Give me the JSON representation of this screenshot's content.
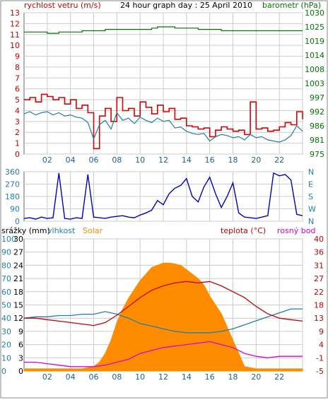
{
  "header": {
    "wind_label": "rychlost vetru (m/s)",
    "title": "24 hour graph day : 25 April 2010",
    "baro_label": "barometr (hPa)"
  },
  "legend2": {
    "precip": "srážky (mm)",
    "humidity": "vlhkost",
    "solar": "Solar",
    "temperature": "teplota (°C)",
    "dewpoint": "rosný bod"
  },
  "colors": {
    "wind_gust": "#dd0000",
    "wind_avg": "#1f7fa0",
    "baro": "#007700",
    "direction": "#0000cc",
    "solar": "#ff8c00",
    "temperature": "#cc0000",
    "humidity": "#1f7fb0",
    "dewpoint": "#dd00dd",
    "grid": "#cccccc",
    "axis_left_bottom": "#1f7fb0",
    "axis_right_red": "#cc0000"
  },
  "chart_data": [
    {
      "type": "line",
      "title": "24 hour graph day : 25 April 2010",
      "x_ticks": [
        "02",
        "04",
        "06",
        "08",
        "10",
        "12",
        "14",
        "16",
        "18",
        "20",
        "22",
        "24"
      ],
      "xlim": [
        0,
        24
      ],
      "ylabel": "rychlost vetru (m/s)",
      "y_ticks": [
        0,
        1,
        2,
        3,
        4,
        5,
        6,
        7,
        8,
        9,
        10,
        11,
        12,
        13
      ],
      "ylim": [
        0,
        13
      ],
      "y2label": "barometr (hPa)",
      "y2_ticks": [
        975,
        981,
        986,
        992,
        997,
        1003,
        1008,
        1014,
        1019,
        1025,
        1030
      ],
      "series": [
        {
          "name": "wind_gust",
          "x": [
            0,
            0.5,
            1,
            1.5,
            2,
            2.5,
            3,
            3.5,
            4,
            4.5,
            5,
            5.5,
            6,
            6.5,
            7,
            7.5,
            8,
            8.5,
            9,
            9.5,
            10,
            10.5,
            11,
            11.5,
            12,
            12.5,
            13,
            13.5,
            14,
            14.5,
            15,
            15.5,
            16,
            16.5,
            17,
            17.5,
            18,
            18.5,
            19,
            19.5,
            20,
            20.5,
            21,
            21.5,
            22,
            22.5,
            23,
            23.5,
            24
          ],
          "values": [
            5,
            5.2,
            4.8,
            5.5,
            5.3,
            5,
            5.2,
            4.6,
            5,
            4.2,
            4.5,
            3.8,
            0.5,
            3.5,
            4.2,
            3,
            5.2,
            4,
            4.2,
            3.5,
            4.8,
            4.3,
            3.7,
            4.5,
            3.9,
            4.2,
            3.2,
            3.3,
            2.6,
            2.5,
            2.3,
            2.4,
            1.6,
            2.2,
            2.5,
            2.3,
            2.1,
            2.2,
            1.8,
            4.8,
            2.3,
            2.4,
            2.1,
            2.2,
            2.5,
            2.9,
            2.7,
            3.9,
            3.2
          ]
        },
        {
          "name": "wind_avg",
          "x": [
            0,
            0.5,
            1,
            1.5,
            2,
            2.5,
            3,
            3.5,
            4,
            4.5,
            5,
            5.5,
            6,
            6.5,
            7,
            7.5,
            8,
            8.5,
            9,
            9.5,
            10,
            10.5,
            11,
            11.5,
            12,
            12.5,
            13,
            13.5,
            14,
            14.5,
            15,
            15.5,
            16,
            16.5,
            17,
            17.5,
            18,
            18.5,
            19,
            19.5,
            20,
            20.5,
            21,
            21.5,
            22,
            22.5,
            23,
            23.5,
            24
          ],
          "values": [
            3.7,
            3.9,
            3.6,
            3.8,
            3.9,
            3.6,
            3.8,
            3.5,
            3.6,
            3.4,
            3.3,
            2.9,
            1.4,
            2.7,
            3.1,
            2.3,
            3.8,
            3.1,
            3.3,
            2.8,
            3.4,
            3.1,
            2.9,
            3.3,
            3,
            3.1,
            2.4,
            2.5,
            2.1,
            1.9,
            1.8,
            1.9,
            1.2,
            1.6,
            1.8,
            1.7,
            1.5,
            1.6,
            1.3,
            1.8,
            1.5,
            1.6,
            1.3,
            1.2,
            1.1,
            1.3,
            1.7,
            2.6,
            2.1
          ]
        },
        {
          "name": "barometr",
          "axis": "right",
          "x": [
            0,
            1,
            2,
            3,
            4,
            5,
            6,
            7,
            8,
            9,
            10,
            11,
            11.5,
            12,
            13,
            14,
            15,
            16,
            17,
            18,
            19,
            20,
            21,
            22,
            23,
            24
          ],
          "values": [
            1022.5,
            1022.5,
            1022,
            1022.5,
            1022.5,
            1023,
            1023,
            1023.5,
            1023.5,
            1023.5,
            1023.5,
            1024,
            1024.5,
            1024.5,
            1024,
            1024,
            1023.5,
            1023.5,
            1023,
            1023,
            1023,
            1023,
            1023,
            1023,
            1023,
            1023
          ]
        }
      ]
    },
    {
      "type": "line",
      "x_ticks": [],
      "xlim": [
        0,
        24
      ],
      "y_ticks": [
        0,
        90,
        180,
        270,
        360
      ],
      "ylim": [
        0,
        360
      ],
      "y2_ticks": [
        "N",
        "W",
        "S",
        "E",
        "N"
      ],
      "series": [
        {
          "name": "direction",
          "x": [
            0,
            0.5,
            1,
            1.5,
            2,
            2.5,
            3,
            3.5,
            4,
            4.5,
            5,
            5.5,
            6,
            6.5,
            7,
            7.5,
            8,
            8.5,
            9,
            9.5,
            10,
            10.5,
            11,
            11.5,
            12,
            12.5,
            13,
            13.5,
            14,
            14.5,
            15,
            15.5,
            16,
            16.5,
            17,
            17.5,
            18,
            18.5,
            19,
            19.5,
            20,
            20.5,
            21,
            21.5,
            22,
            22.5,
            23,
            23.5,
            24
          ],
          "values": [
            20,
            25,
            15,
            30,
            20,
            25,
            350,
            20,
            15,
            25,
            20,
            340,
            30,
            25,
            20,
            30,
            35,
            40,
            30,
            25,
            45,
            60,
            80,
            150,
            120,
            200,
            240,
            260,
            310,
            180,
            140,
            250,
            320,
            200,
            100,
            180,
            280,
            60,
            30,
            25,
            20,
            30,
            40,
            350,
            330,
            340,
            300,
            50,
            40
          ]
        }
      ]
    },
    {
      "type": "area",
      "x_ticks": [
        "02",
        "04",
        "06",
        "08",
        "10",
        "12",
        "14",
        "16",
        "18",
        "20",
        "22",
        "24"
      ],
      "xlim": [
        0,
        24
      ],
      "left_ticks_precip": [
        0,
        3,
        6,
        9,
        12,
        15,
        18,
        21,
        24,
        27,
        30
      ],
      "left_ticks_humidity": [
        0,
        10,
        20,
        30,
        40,
        50,
        60,
        70,
        80,
        90,
        100
      ],
      "right_ticks_temp": [
        -5,
        -1,
        4,
        9,
        13,
        18,
        22,
        27,
        31,
        36,
        40
      ],
      "right_ticks_temp_2": [
        -5,
        -2,
        0,
        3,
        6,
        9,
        12,
        15,
        18,
        21,
        24,
        27,
        30,
        33,
        36,
        40
      ],
      "series": [
        {
          "name": "Solar",
          "x": [
            0,
            5,
            6,
            6.5,
            7,
            7.5,
            8,
            8.5,
            9,
            9.5,
            10,
            10.5,
            11,
            11.5,
            12,
            12.5,
            13,
            13.5,
            14,
            14.5,
            15,
            15.5,
            16,
            16.5,
            17,
            17.5,
            18,
            18.5,
            19,
            20,
            24
          ],
          "values": [
            0.5,
            0.5,
            1,
            2,
            4,
            7,
            11,
            14,
            16.5,
            18.5,
            20.5,
            22,
            23.5,
            24,
            24.5,
            24.5,
            24.3,
            24,
            23,
            22,
            21,
            19.5,
            17,
            15,
            13,
            10,
            7,
            4,
            1,
            0.5,
            0.5
          ]
        },
        {
          "name": "teplota",
          "x": [
            0,
            1,
            2,
            3,
            4,
            5,
            6,
            7,
            8,
            9,
            10,
            11,
            12,
            13,
            14,
            15,
            16,
            17,
            18,
            19,
            20,
            21,
            22,
            23,
            24
          ],
          "values": [
            13,
            13,
            12.5,
            12,
            11.5,
            11,
            10.5,
            11.5,
            14,
            17,
            20,
            22.5,
            24,
            25,
            25.5,
            25,
            25.5,
            24,
            22,
            20,
            17,
            14.5,
            13,
            12.5,
            12
          ]
        },
        {
          "name": "vlhkost",
          "x": [
            0,
            1,
            2,
            3,
            4,
            5,
            6,
            7,
            8,
            9,
            10,
            11,
            12,
            13,
            14,
            15,
            16,
            17,
            18,
            19,
            20,
            21,
            22,
            23,
            24
          ],
          "values": [
            40,
            41,
            41,
            42,
            42,
            43,
            43,
            45,
            43,
            40,
            36,
            34,
            32,
            30,
            29,
            29,
            29,
            30,
            32,
            35,
            38,
            41,
            44,
            47,
            47
          ]
        },
        {
          "name": "rosný bod",
          "x": [
            0,
            1,
            2,
            3,
            4,
            5,
            6,
            7,
            8,
            9,
            10,
            11,
            12,
            13,
            14,
            15,
            16,
            17,
            18,
            19,
            20,
            21,
            22,
            23,
            24
          ],
          "values": [
            -2,
            -2,
            -2.5,
            -3,
            -3.5,
            -3.5,
            -3.5,
            -3,
            -2,
            -1,
            1,
            2,
            3,
            3.5,
            4,
            4.5,
            5,
            4,
            3,
            1,
            0,
            -0.5,
            0,
            0,
            0
          ]
        }
      ]
    }
  ]
}
